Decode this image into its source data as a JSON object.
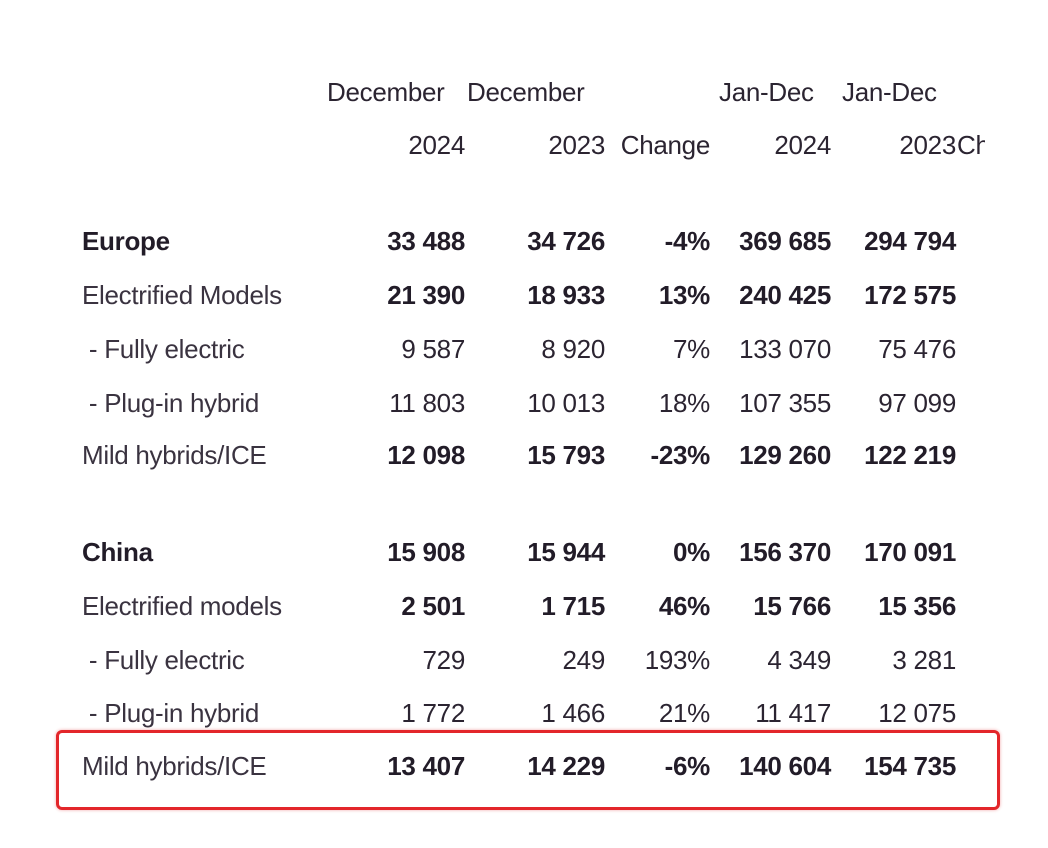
{
  "header": {
    "row1": [
      "December",
      "December",
      "",
      "Jan-Dec",
      "Jan-Dec",
      ""
    ],
    "row2": [
      "2024",
      "2023",
      "Change",
      "2024",
      "2023",
      "Change"
    ]
  },
  "rows": [
    {
      "label": "Europe",
      "values": [
        "33 488",
        "34 726",
        "-4%",
        "369 685",
        "294 794"
      ],
      "bold_label": true,
      "bold_values": true
    },
    {
      "label": "Electrified Models",
      "values": [
        "21 390",
        "18 933",
        "13%",
        "240 425",
        "172 575"
      ],
      "bold_label": false,
      "bold_values": true
    },
    {
      "label": " - Fully electric",
      "values": [
        "9 587",
        "8 920",
        "7%",
        "133 070",
        "75 476"
      ],
      "bold_label": false,
      "bold_values": false
    },
    {
      "label": " - Plug-in hybrid",
      "values": [
        "11 803",
        "10 013",
        "18%",
        "107 355",
        "97 099"
      ],
      "bold_label": false,
      "bold_values": false
    },
    {
      "label": "Mild hybrids/ICE",
      "values": [
        "12 098",
        "15 793",
        "-23%",
        "129 260",
        "122 219"
      ],
      "bold_label": false,
      "bold_values": true
    },
    {
      "label": "China",
      "values": [
        "15 908",
        "15 944",
        "0%",
        "156 370",
        "170 091"
      ],
      "bold_label": true,
      "bold_values": true
    },
    {
      "label": "Electrified models",
      "values": [
        "2 501",
        "1 715",
        "46%",
        "15 766",
        "15 356"
      ],
      "bold_label": false,
      "bold_values": true
    },
    {
      "label": " - Fully electric",
      "values": [
        "729",
        "249",
        "193%",
        "4 349",
        "3 281"
      ],
      "bold_label": false,
      "bold_values": false
    },
    {
      "label": " - Plug-in hybrid",
      "values": [
        "1 772",
        "1 466",
        "21%",
        "11 417",
        "12 075"
      ],
      "bold_label": false,
      "bold_values": false
    },
    {
      "label": "Mild hybrids/ICE",
      "values": [
        "13 407",
        "14 229",
        "-6%",
        "140 604",
        "154 735"
      ],
      "bold_label": false,
      "bold_values": true,
      "highlighted": true
    }
  ],
  "highlight_color": "#e3262a"
}
